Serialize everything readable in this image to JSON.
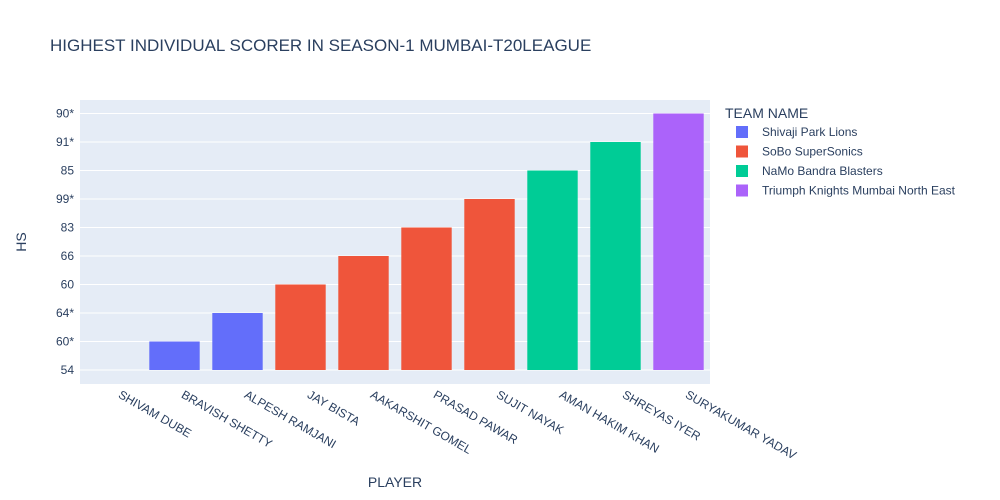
{
  "chart_data": {
    "type": "bar",
    "title": "HIGHEST INDIVIDUAL SCORER IN SEASON-1 MUMBAI-T20LEAGUE",
    "xlabel": "PLAYER",
    "ylabel": "HS",
    "y_categories": [
      "54",
      "60*",
      "64*",
      "60",
      "66",
      "83",
      "99*",
      "85",
      "91*",
      "90*"
    ],
    "legend_title": "TEAM NAME",
    "legend_position": "right",
    "grid": true,
    "series": [
      {
        "name": "Shivaji Park Lions",
        "color": "#636efa",
        "points": [
          {
            "x": "SHIVAM DUBE",
            "y": "54"
          },
          {
            "x": "BRAVISH SHETTY",
            "y": "60*"
          },
          {
            "x": "ALPESH RAMJANI",
            "y": "64*"
          }
        ]
      },
      {
        "name": "SoBo SuperSonics",
        "color": "#ef553b",
        "points": [
          {
            "x": "JAY BISTA",
            "y": "60"
          },
          {
            "x": "AAKARSHIT GOMEL",
            "y": "66"
          },
          {
            "x": "PRASAD PAWAR",
            "y": "83"
          },
          {
            "x": "SUJIT NAYAK",
            "y": "99*"
          }
        ]
      },
      {
        "name": "NaMo Bandra Blasters",
        "color": "#00cc96",
        "points": [
          {
            "x": "AMAN HAKIM KHAN",
            "y": "85"
          },
          {
            "x": "SHREYAS IYER",
            "y": "91*"
          }
        ]
      },
      {
        "name": "Triumph Knights Mumbai North East",
        "color": "#ab63fa",
        "points": [
          {
            "x": "SURYAKUMAR YADAV",
            "y": "90*"
          }
        ]
      }
    ],
    "categories": [
      "SHIVAM DUBE",
      "BRAVISH SHETTY",
      "ALPESH RAMJANI",
      "JAY BISTA",
      "AAKARSHIT GOMEL",
      "PRASAD PAWAR",
      "SUJIT NAYAK",
      "AMAN HAKIM KHAN",
      "SHREYAS IYER",
      "SURYAKUMAR YADAV"
    ],
    "colors": {
      "plot_bg": "#e5ecf6",
      "grid": "#ffffff",
      "text": "#2a3f5f"
    }
  }
}
